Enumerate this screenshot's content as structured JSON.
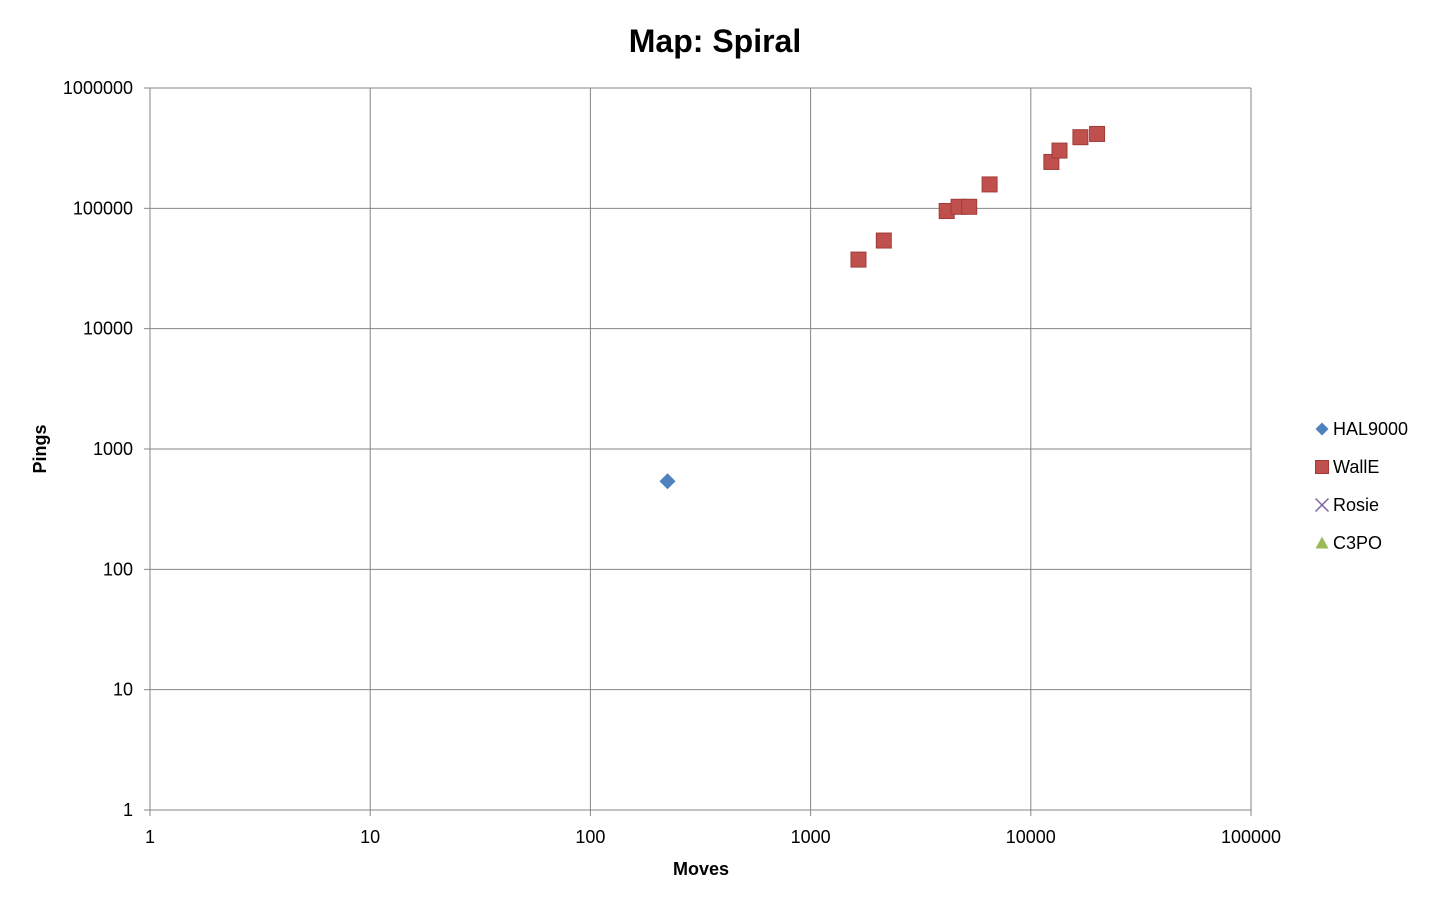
{
  "chart_data": {
    "type": "scatter",
    "title": "Map: Spiral",
    "xlabel": "Moves",
    "ylabel": "Pings",
    "x_scale": "log",
    "y_scale": "log",
    "xlim": [
      1,
      100000
    ],
    "ylim": [
      1,
      1000000
    ],
    "x_ticks": [
      "1",
      "10",
      "100",
      "1000",
      "10000",
      "100000"
    ],
    "y_ticks": [
      "1",
      "10",
      "100",
      "1000",
      "10000",
      "100000",
      "1000000"
    ],
    "grid": true,
    "legend_position": "right",
    "series": [
      {
        "name": "HAL9000",
        "marker": "diamond",
        "color": "#4F81BD",
        "points": [
          [
            224,
            540
          ]
        ]
      },
      {
        "name": "WallE",
        "marker": "square",
        "color": "#C0504D",
        "points": [
          [
            1650,
            37500
          ],
          [
            2150,
            54000
          ],
          [
            4150,
            95000
          ],
          [
            4700,
            103000
          ],
          [
            5250,
            103000
          ],
          [
            6500,
            158000
          ],
          [
            12400,
            243000
          ],
          [
            13500,
            302000
          ],
          [
            16800,
            390000
          ],
          [
            20000,
            415000
          ]
        ]
      },
      {
        "name": "Rosie",
        "marker": "x",
        "color": "#8064A2",
        "points": []
      },
      {
        "name": "C3PO",
        "marker": "triangle",
        "color": "#9BBB59",
        "points": []
      }
    ]
  }
}
